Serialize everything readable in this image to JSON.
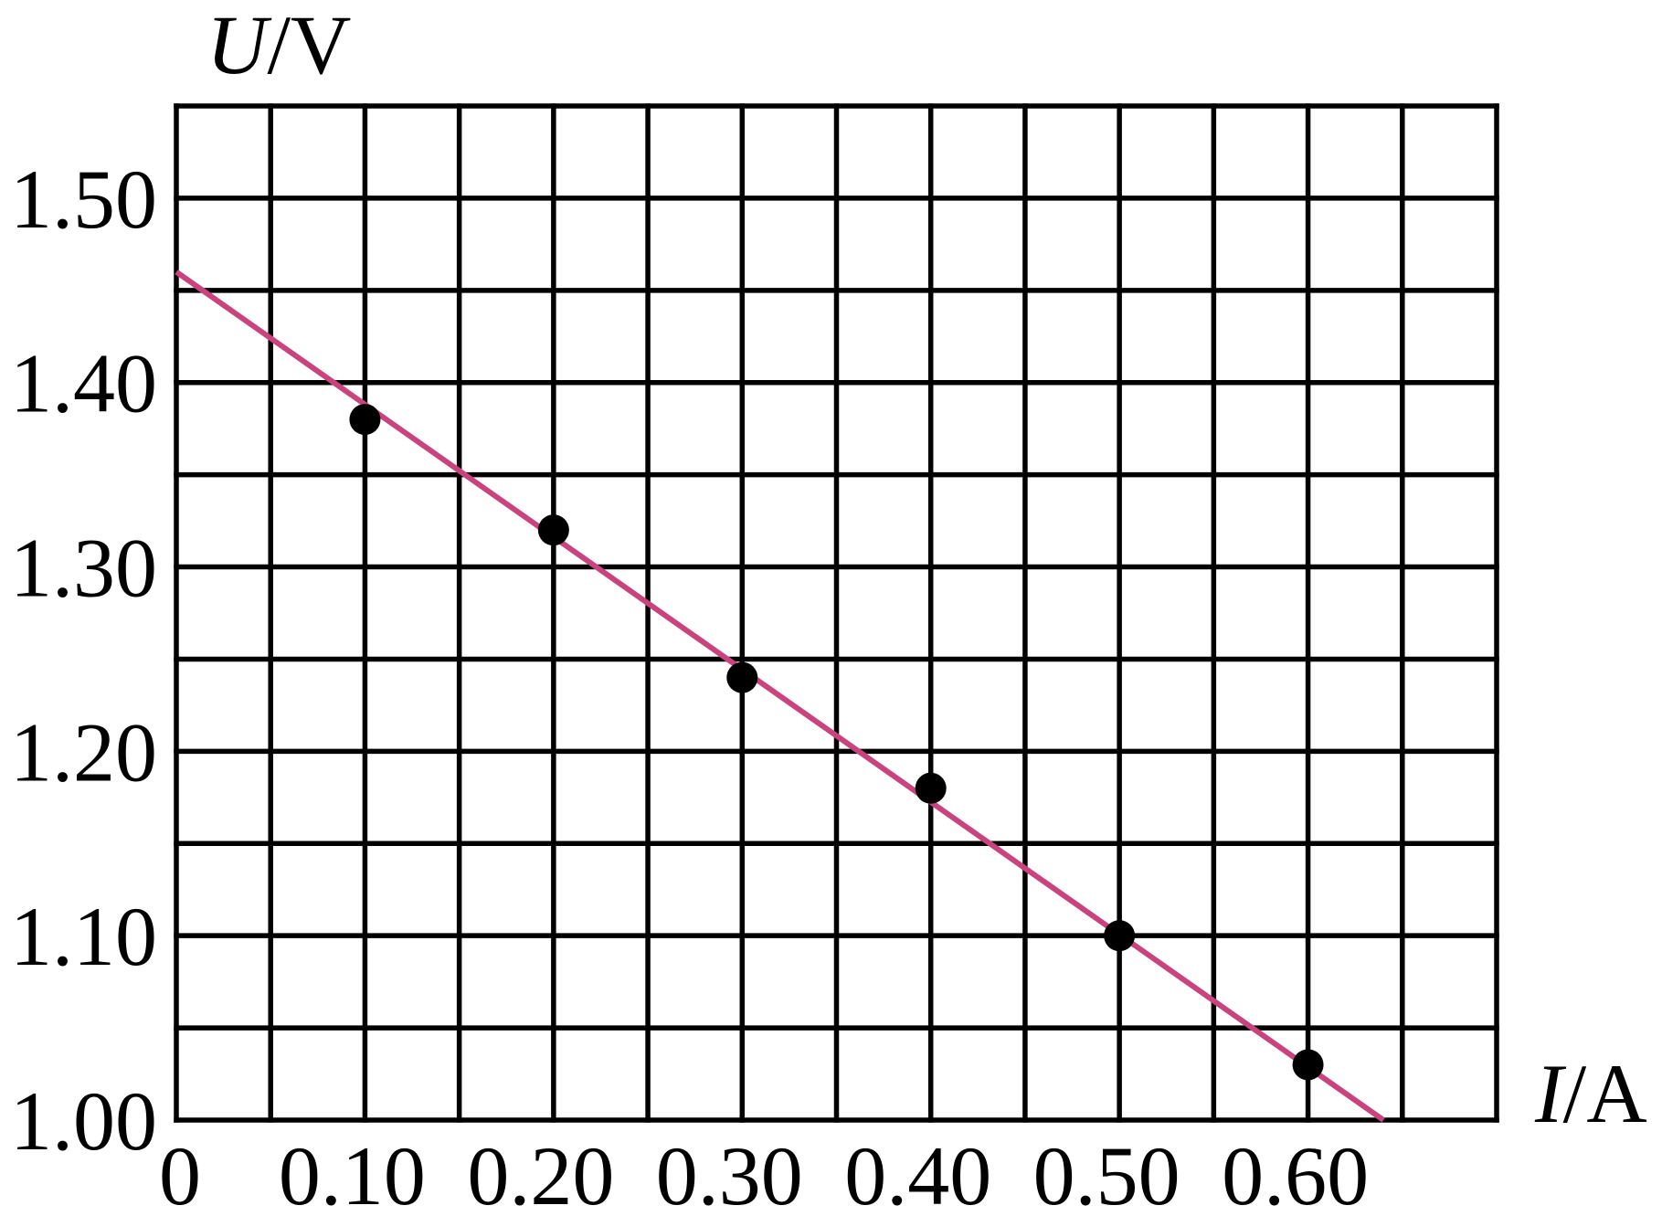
{
  "chart_data": {
    "type": "scatter",
    "title": "",
    "xlabel": "I/A",
    "xlabel_parts": {
      "symbol": "I",
      "unit": "/A"
    },
    "ylabel": "U/V",
    "ylabel_parts": {
      "symbol": "U",
      "unit": "/V"
    },
    "xlim": [
      0,
      0.7
    ],
    "ylim": [
      1.0,
      1.55
    ],
    "x_grid_step": 0.05,
    "y_grid_step": 0.05,
    "grid": true,
    "x_ticks": [
      0,
      0.1,
      0.2,
      0.3,
      0.4,
      0.5,
      0.6
    ],
    "x_tick_labels": [
      "0",
      "0.10",
      "0.20",
      "0.30",
      "0.40",
      "0.50",
      "0.60"
    ],
    "y_ticks": [
      1.0,
      1.1,
      1.2,
      1.3,
      1.4,
      1.5
    ],
    "y_tick_labels": [
      "1.00",
      "1.10",
      "1.20",
      "1.30",
      "1.40",
      "1.50"
    ],
    "points": {
      "x": [
        0.1,
        0.2,
        0.3,
        0.4,
        0.5,
        0.6
      ],
      "y": [
        1.38,
        1.32,
        1.24,
        1.18,
        1.1,
        1.03
      ],
      "color": "#000000"
    },
    "fit_line": {
      "x": [
        0,
        0.64
      ],
      "y": [
        1.46,
        1.0
      ],
      "color": "#c9447f"
    }
  }
}
